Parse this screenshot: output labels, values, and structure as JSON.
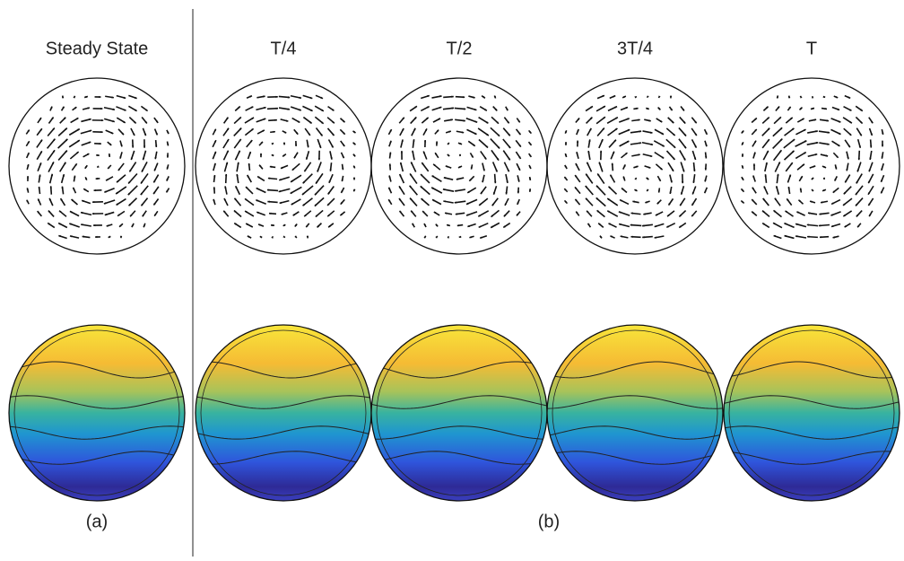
{
  "panels": [
    {
      "label": "Steady State"
    },
    {
      "label": "T/4"
    },
    {
      "label": "T/2"
    },
    {
      "label": "3T/4"
    },
    {
      "label": "T"
    }
  ],
  "captions": {
    "a": "(a)",
    "b": "(b)"
  }
}
